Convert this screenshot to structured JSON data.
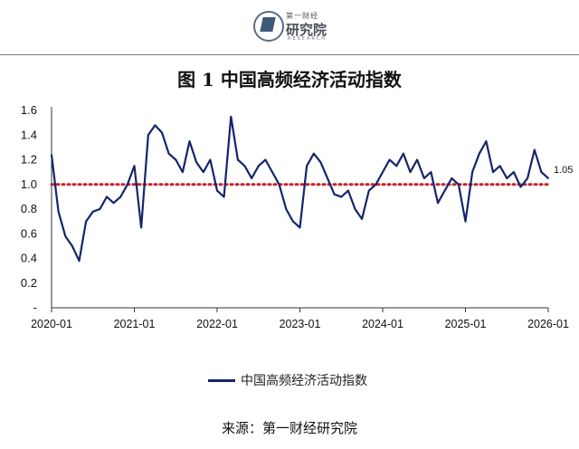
{
  "logo": {
    "top_text": "第一财经",
    "main_text": "研究院",
    "sub_text": "RESEARCH"
  },
  "figure_title": "图 1  中国高频经济活动指数",
  "source": "来源：第一财经研究院",
  "colors": {
    "series": "#15246b",
    "reference": "#c0282d",
    "axis": "#333333"
  },
  "chart_data": {
    "type": "line",
    "title": "图 1  中国高频经济活动指数",
    "xlabel": "",
    "ylabel": "",
    "x_ticks": [
      "2020-01",
      "2021-01",
      "2022-01",
      "2023-01",
      "2024-01",
      "2025-01",
      "2026-01"
    ],
    "y_ticks": [
      "-",
      "0.2",
      "0.4",
      "0.6",
      "0.8",
      "1.0",
      "1.2",
      "1.4",
      "1.6"
    ],
    "ylim": [
      0,
      1.6
    ],
    "xlim": [
      "2020-01",
      "2026-01"
    ],
    "grid": false,
    "legend_position": "bottom",
    "reference_line": {
      "y": 1.0,
      "style": "dotted"
    },
    "end_label": "1.05",
    "series": [
      {
        "name": "中国高频经济活动指数",
        "points": [
          [
            "2020-01",
            1.24
          ],
          [
            "2020-02",
            0.78
          ],
          [
            "2020-03",
            0.58
          ],
          [
            "2020-04",
            0.5
          ],
          [
            "2020-05",
            0.38
          ],
          [
            "2020-06",
            0.7
          ],
          [
            "2020-07",
            0.78
          ],
          [
            "2020-08",
            0.8
          ],
          [
            "2020-09",
            0.9
          ],
          [
            "2020-10",
            0.85
          ],
          [
            "2020-11",
            0.9
          ],
          [
            "2020-12",
            1.0
          ],
          [
            "2021-01",
            1.15
          ],
          [
            "2021-02",
            0.65
          ],
          [
            "2021-03",
            1.4
          ],
          [
            "2021-04",
            1.48
          ],
          [
            "2021-05",
            1.42
          ],
          [
            "2021-06",
            1.25
          ],
          [
            "2021-07",
            1.2
          ],
          [
            "2021-08",
            1.1
          ],
          [
            "2021-09",
            1.35
          ],
          [
            "2021-10",
            1.18
          ],
          [
            "2021-11",
            1.1
          ],
          [
            "2021-12",
            1.2
          ],
          [
            "2022-01",
            0.95
          ],
          [
            "2022-02",
            0.9
          ],
          [
            "2022-03",
            1.55
          ],
          [
            "2022-04",
            1.2
          ],
          [
            "2022-05",
            1.15
          ],
          [
            "2022-06",
            1.05
          ],
          [
            "2022-07",
            1.15
          ],
          [
            "2022-08",
            1.2
          ],
          [
            "2022-09",
            1.1
          ],
          [
            "2022-10",
            1.0
          ],
          [
            "2022-11",
            0.8
          ],
          [
            "2022-12",
            0.7
          ],
          [
            "2023-01",
            0.65
          ],
          [
            "2023-02",
            1.15
          ],
          [
            "2023-03",
            1.25
          ],
          [
            "2023-04",
            1.18
          ],
          [
            "2023-05",
            1.05
          ],
          [
            "2023-06",
            0.92
          ],
          [
            "2023-07",
            0.9
          ],
          [
            "2023-08",
            0.95
          ],
          [
            "2023-09",
            0.8
          ],
          [
            "2023-10",
            0.72
          ],
          [
            "2023-11",
            0.95
          ],
          [
            "2023-12",
            1.0
          ],
          [
            "2024-01",
            1.1
          ],
          [
            "2024-02",
            1.2
          ],
          [
            "2024-03",
            1.15
          ],
          [
            "2024-04",
            1.25
          ],
          [
            "2024-05",
            1.1
          ],
          [
            "2024-06",
            1.2
          ],
          [
            "2024-07",
            1.05
          ],
          [
            "2024-08",
            1.1
          ],
          [
            "2024-09",
            0.85
          ],
          [
            "2024-10",
            0.95
          ],
          [
            "2024-11",
            1.05
          ],
          [
            "2024-12",
            1.0
          ],
          [
            "2025-01",
            0.7
          ],
          [
            "2025-02",
            1.1
          ],
          [
            "2025-03",
            1.25
          ],
          [
            "2025-04",
            1.35
          ],
          [
            "2025-05",
            1.1
          ],
          [
            "2025-06",
            1.15
          ],
          [
            "2025-07",
            1.05
          ],
          [
            "2025-08",
            1.1
          ],
          [
            "2025-09",
            0.98
          ],
          [
            "2025-10",
            1.05
          ],
          [
            "2025-11",
            1.28
          ],
          [
            "2025-12",
            1.1
          ],
          [
            "2026-01",
            1.05
          ]
        ]
      }
    ]
  }
}
